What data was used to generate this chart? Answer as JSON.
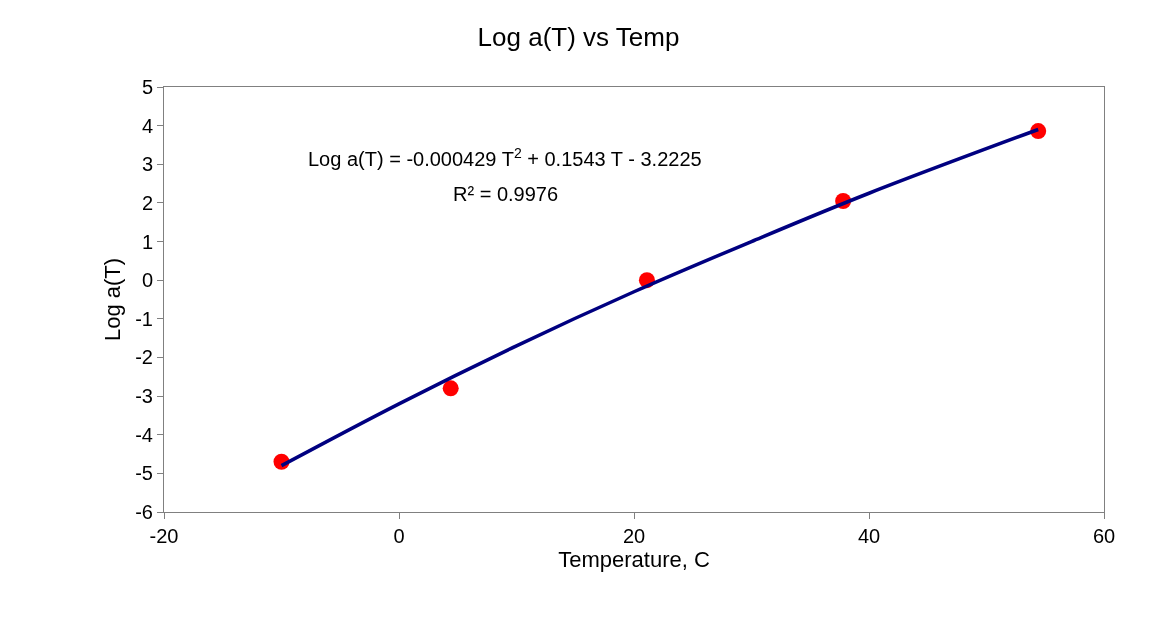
{
  "chart_data": {
    "type": "scatter",
    "title": "Log a(T) vs Temp",
    "xlabel": "Temperature, C",
    "ylabel": "Log a(T)",
    "annotations": [
      "Log a(T) = -0.000429 T$^{2}$ + 0.1543 T - 3.2225",
      "R² = 0.9976"
    ],
    "series": [
      {
        "color": "#ff0000",
        "marker": "circle",
        "x": [
          -10,
          4.4,
          21.1,
          37.8,
          54.4
        ],
        "values": [
          -4.7,
          -2.8,
          0,
          2.05,
          3.86
        ]
      },
      {
        "type": "line",
        "color": "#000080",
        "marker": "none",
        "line_style": "solid",
        "x": [
          -10,
          0,
          10,
          20,
          30,
          40,
          54.4
        ],
        "values": [
          -4.8,
          -3.2,
          -1.7,
          -0.3,
          1.0,
          2.25,
          3.9
        ]
      }
    ],
    "xlim": [
      -20,
      60
    ],
    "xticks": [
      -20,
      0,
      20,
      40,
      60
    ],
    "ylim": [
      -6,
      5
    ],
    "yticks": [
      -6,
      -5,
      -4,
      -3,
      -2,
      -1,
      0,
      1,
      2,
      3,
      4,
      5
    ]
  }
}
